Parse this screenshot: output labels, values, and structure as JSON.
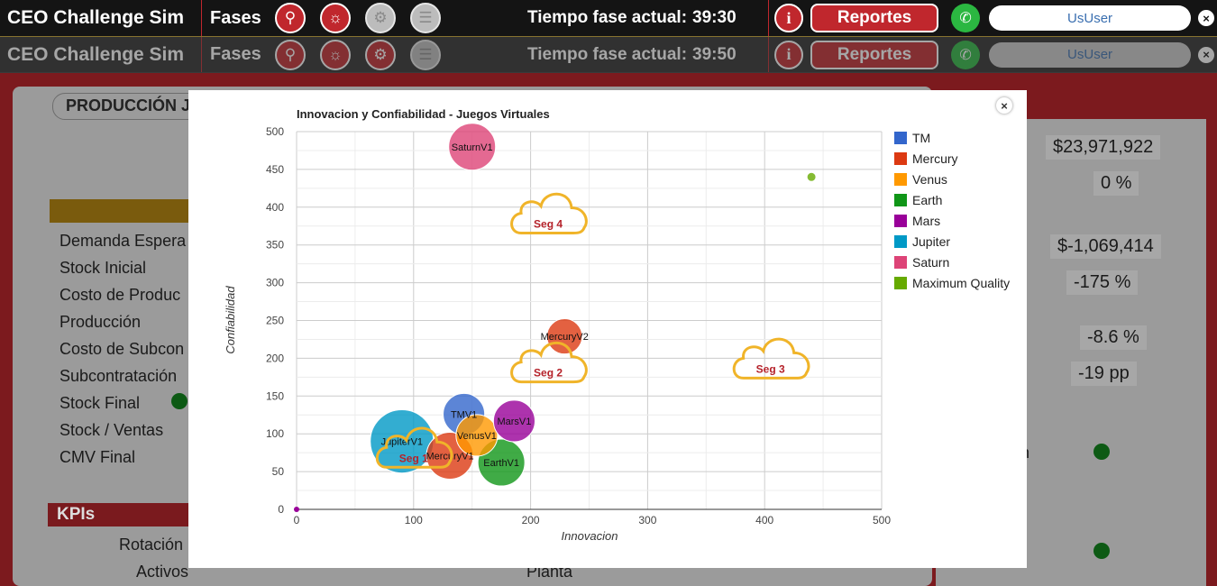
{
  "topbar": {
    "brand": "CEO Challenge Sim",
    "fases": "Fases",
    "time_label": "Tiempo fase actual:",
    "time_value_1": "39:30",
    "time_value_2": "39:50",
    "info_label": "i",
    "reportes_label": "Reportes",
    "user_label": "UsUser",
    "icons": [
      "magnifier-icon",
      "lightbulb-icon",
      "gears-icon",
      "document-icon"
    ]
  },
  "background": {
    "tab_title": "PRODUCCIÓN JU",
    "rows": [
      "Demanda Espera",
      "Stock Inicial",
      "Costo de Produc",
      "Producción",
      "Costo de Subcon",
      "Subcontratación",
      "Stock Final",
      "Stock / Ventas",
      "CMV Final"
    ],
    "kpis_label": "KPIs",
    "bottom_left": "Rotación",
    "bottom_left2": "Activos",
    "bottom_center": "Planta",
    "right_values": [
      "$23,971,922",
      "0 %",
      "$-1,069,414",
      "-175 %",
      "-8.6 %",
      "-19 pp"
    ],
    "right_label_fragment": "n"
  },
  "modal": {
    "close_label": "×"
  },
  "chart_data": {
    "type": "scatter",
    "title": "Innovacion y Confiabilidad - Juegos Virtuales",
    "xlabel": "Innovacion",
    "ylabel": "Confiabilidad",
    "xlim": [
      0,
      500
    ],
    "ylim": [
      0,
      500
    ],
    "xticks": [
      "0",
      "100",
      "200",
      "300",
      "400",
      "500"
    ],
    "yticks": [
      "0",
      "50",
      "100",
      "150",
      "200",
      "250",
      "300",
      "350",
      "400",
      "450",
      "500"
    ],
    "grid": true,
    "legend_position": "right",
    "series": [
      {
        "name": "TM",
        "color": "#3366cc",
        "points": [
          {
            "label": "TMV1",
            "x": 143,
            "y": 126,
            "size": 3
          }
        ]
      },
      {
        "name": "Mercury",
        "color": "#dc3912",
        "points": [
          {
            "label": "MercuryV1",
            "x": 131,
            "y": 71,
            "size": 4
          },
          {
            "label": "MercuryV2",
            "x": 229,
            "y": 229,
            "size": 2
          }
        ]
      },
      {
        "name": "Venus",
        "color": "#ff9900",
        "points": [
          {
            "label": "VenusV1",
            "x": 154,
            "y": 98,
            "size": 3
          }
        ]
      },
      {
        "name": "Earth",
        "color": "#109618",
        "points": [
          {
            "label": "EarthV1",
            "x": 175,
            "y": 62,
            "size": 4
          }
        ]
      },
      {
        "name": "Mars",
        "color": "#990099",
        "points": [
          {
            "label": "MarsV1",
            "x": 186,
            "y": 117,
            "size": 3
          }
        ]
      },
      {
        "name": "Jupiter",
        "color": "#0099c6",
        "points": [
          {
            "label": "JupiterV1",
            "x": 90,
            "y": 90,
            "size": 8
          }
        ]
      },
      {
        "name": "Saturn",
        "color": "#dd4477",
        "points": [
          {
            "label": "SaturnV1",
            "x": 150,
            "y": 480,
            "size": 4
          }
        ]
      },
      {
        "name": "Maximum Quality",
        "color": "#66aa00",
        "points": [
          {
            "label": "",
            "x": 440,
            "y": 440,
            "size": 0.4
          }
        ]
      }
    ],
    "segments": [
      {
        "label": "Seg 1",
        "x": 100,
        "y": 82
      },
      {
        "label": "Seg 2",
        "x": 215,
        "y": 195
      },
      {
        "label": "Seg 3",
        "x": 405,
        "y": 200
      },
      {
        "label": "Seg 4",
        "x": 215,
        "y": 392
      }
    ]
  }
}
